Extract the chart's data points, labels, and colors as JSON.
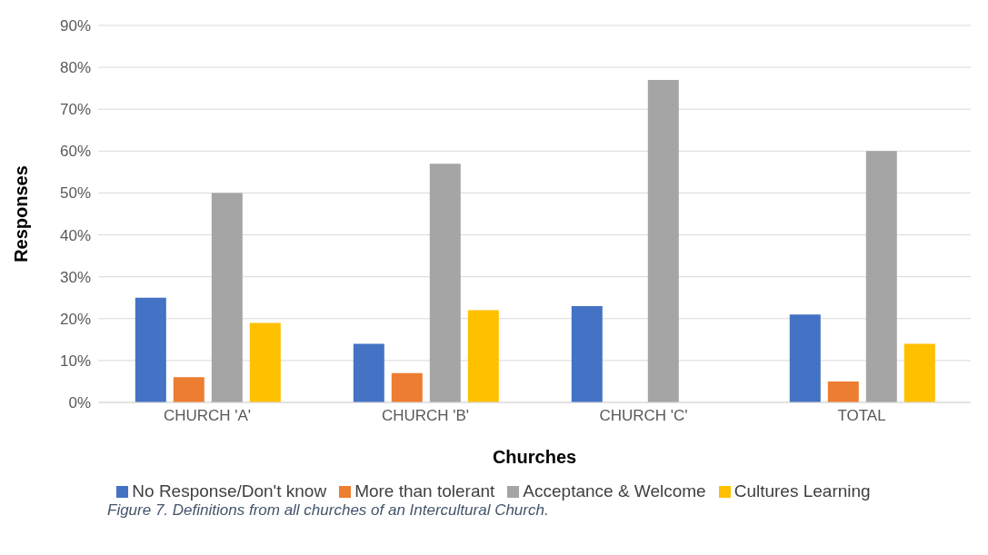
{
  "chart_data": {
    "type": "bar",
    "xlabel": "Churches",
    "ylabel": "Responses",
    "categories": [
      "CHURCH 'A'",
      "CHURCH 'B'",
      "CHURCH 'C'",
      "TOTAL"
    ],
    "series": [
      {
        "name": "No Response/Don't know",
        "color": "#4472c4",
        "values": [
          25,
          14,
          23,
          21
        ]
      },
      {
        "name": "More than tolerant",
        "color": "#ed7d31",
        "values": [
          6,
          7,
          0,
          5
        ]
      },
      {
        "name": "Acceptance & Welcome",
        "color": "#a5a5a5",
        "values": [
          50,
          57,
          77,
          60
        ]
      },
      {
        "name": "Cultures Learning",
        "color": "#ffc000",
        "values": [
          19,
          22,
          0,
          14
        ]
      }
    ],
    "ylim": [
      0,
      90
    ],
    "yticks": [
      {
        "value": 0,
        "label": "0%"
      },
      {
        "value": 10,
        "label": "10%"
      },
      {
        "value": 20,
        "label": "20%"
      },
      {
        "value": 30,
        "label": "30%"
      },
      {
        "value": 40,
        "label": "40%"
      },
      {
        "value": 50,
        "label": "50%"
      },
      {
        "value": 60,
        "label": "60%"
      },
      {
        "value": 70,
        "label": "70%"
      },
      {
        "value": 80,
        "label": "80%"
      },
      {
        "value": 90,
        "label": "90%"
      }
    ],
    "grid": "y",
    "legend": "bottom",
    "annotations": [
      "Figure 7. Definitions from all churches of an Intercultural Church."
    ]
  }
}
